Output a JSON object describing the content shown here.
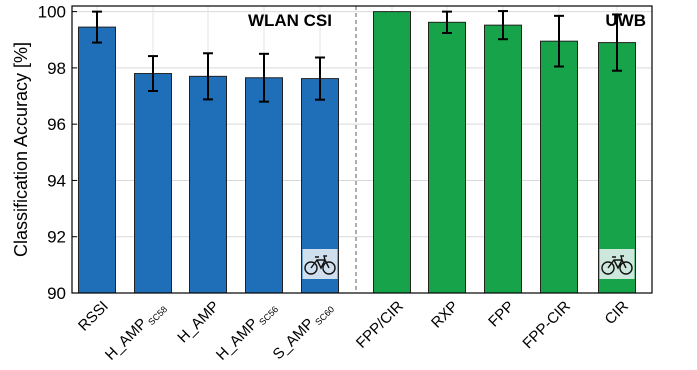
{
  "chart_data": {
    "type": "bar",
    "ylabel": "Classification Accuracy [%]",
    "ylim": [
      90,
      100.2
    ],
    "yticks": [
      90,
      92,
      94,
      96,
      98,
      100
    ],
    "grid": true,
    "groups": [
      {
        "label": "WLAN CSI",
        "color": "#1f6fb8"
      },
      {
        "label": "UWB",
        "color": "#16a34a"
      }
    ],
    "bars": [
      {
        "label": "RSSI",
        "sub": "",
        "value": 99.45,
        "err": 0.55,
        "group": 0,
        "bike": false
      },
      {
        "label": "H_AMP",
        "sub": "SC58",
        "value": 97.8,
        "err": 0.62,
        "group": 0,
        "bike": false
      },
      {
        "label": "H_AMP",
        "sub": "",
        "value": 97.7,
        "err": 0.82,
        "group": 0,
        "bike": false
      },
      {
        "label": "H_AMP",
        "sub": "SC56",
        "value": 97.65,
        "err": 0.85,
        "group": 0,
        "bike": false
      },
      {
        "label": "S_AMP",
        "sub": "SC60",
        "value": 97.62,
        "err": 0.75,
        "group": 0,
        "bike": true
      },
      {
        "label": "FPP/CIR",
        "sub": "",
        "value": 100.0,
        "err": 0.0,
        "group": 1,
        "bike": false
      },
      {
        "label": "RXP",
        "sub": "",
        "value": 99.62,
        "err": 0.38,
        "group": 1,
        "bike": false
      },
      {
        "label": "FPP",
        "sub": "",
        "value": 99.52,
        "err": 0.5,
        "group": 1,
        "bike": false
      },
      {
        "label": "FPP-CIR",
        "sub": "",
        "value": 98.95,
        "err": 0.9,
        "group": 1,
        "bike": false
      },
      {
        "label": "CIR",
        "sub": "",
        "value": 98.9,
        "err": 1.0,
        "group": 1,
        "bike": true
      }
    ]
  }
}
